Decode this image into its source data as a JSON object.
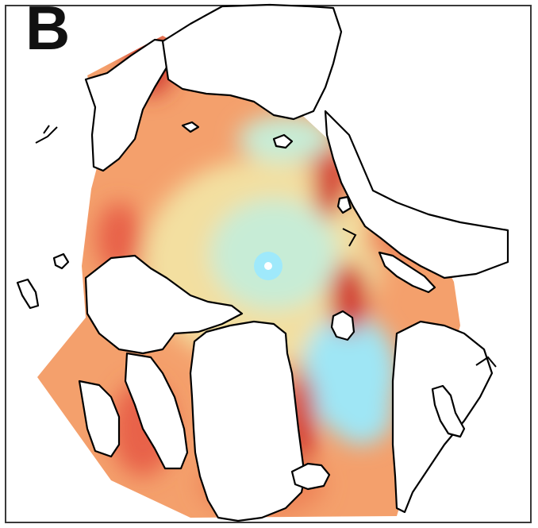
{
  "panel_label": "B",
  "map": {
    "projection": "north-polar-stereographic",
    "field_colormap": [
      "#9fe6f5",
      "#c7ecd6",
      "#f3dfa0",
      "#f4b27a",
      "#ee8458",
      "#d23a33"
    ],
    "ocean_color": "#f4a06c",
    "land_color": "#ffffff",
    "coastline_color": "#000000",
    "pole_color": "#9fe9fb"
  }
}
